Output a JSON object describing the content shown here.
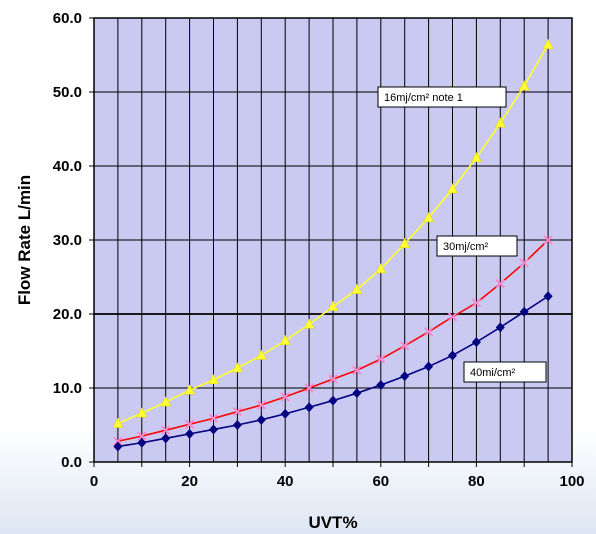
{
  "chart_data": {
    "type": "line",
    "xlabel": "UVT%",
    "ylabel": "Flow  Rate  L/min",
    "xlim": [
      0,
      100
    ],
    "ylim": [
      0,
      60
    ],
    "xticks": [
      "0",
      "20",
      "40",
      "60",
      "80",
      "100"
    ],
    "yticks": [
      "0.0",
      "10.0",
      "20.0",
      "30.0",
      "40.0",
      "50.0",
      "60.0"
    ],
    "grid": true,
    "plot_background": "#c9c9f2",
    "x": [
      5,
      10,
      15,
      20,
      25,
      30,
      35,
      40,
      45,
      50,
      55,
      60,
      65,
      70,
      75,
      80,
      85,
      90,
      95
    ],
    "series": [
      {
        "name": "16mj/cm²  note 1",
        "line_color": "#ffff33",
        "marker": "triangle",
        "marker_color": "#ffff33",
        "values": [
          5.2,
          6.6,
          8.1,
          9.7,
          11.1,
          12.7,
          14.4,
          16.4,
          18.6,
          21.0,
          23.3,
          26.1,
          29.5,
          33.0,
          36.9,
          41.1,
          45.8,
          50.8,
          56.4
        ]
      },
      {
        "name": "30mj/cm²",
        "line_color": "#ff0000",
        "marker": "x",
        "marker_color": "#ff88cc",
        "values": [
          2.8,
          3.5,
          4.3,
          5.1,
          5.9,
          6.8,
          7.7,
          8.8,
          10.0,
          11.2,
          12.4,
          13.9,
          15.7,
          17.6,
          19.6,
          21.5,
          24.1,
          26.9,
          30.0
        ]
      },
      {
        "name": "40mi/cm²",
        "line_color": "#000080",
        "marker": "diamond",
        "marker_color": "#000080",
        "values": [
          2.1,
          2.6,
          3.2,
          3.8,
          4.4,
          5.0,
          5.7,
          6.5,
          7.4,
          8.3,
          9.3,
          10.4,
          11.6,
          12.9,
          14.4,
          16.2,
          18.2,
          20.3,
          22.4
        ]
      }
    ]
  }
}
